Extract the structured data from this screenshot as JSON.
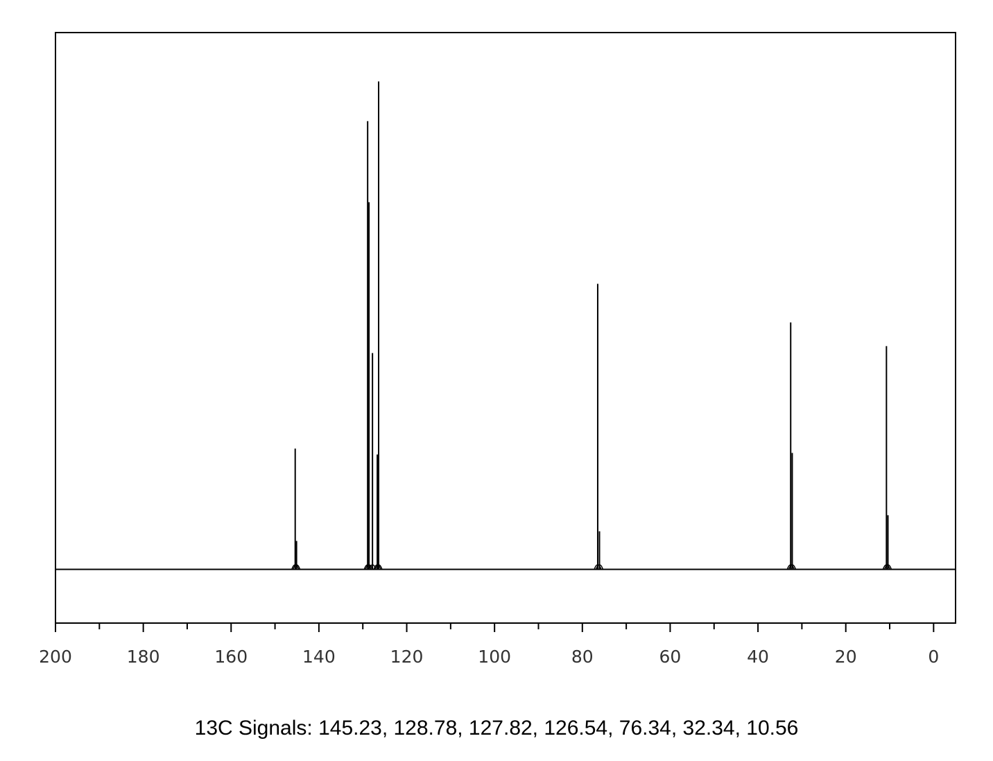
{
  "chart_data": {
    "type": "spectrum",
    "caption": "13C Signals: 145.23, 128.78, 127.82, 126.54, 76.34, 32.34, 10.56",
    "x": [
      145.4,
      145.1,
      128.9,
      128.6,
      127.8,
      126.7,
      126.4,
      76.5,
      76.1,
      32.55,
      32.2,
      10.74,
      10.4
    ],
    "values": [
      22.5,
      5.3,
      83.5,
      68.4,
      40.3,
      21.4,
      90.9,
      53.2,
      7.1,
      46.0,
      21.7,
      41.6,
      10.1
    ],
    "color": "#000000",
    "xlim": [
      200,
      -5
    ],
    "ylim": [
      -10,
      100
    ],
    "xticks": [
      200,
      180,
      160,
      140,
      120,
      100,
      80,
      60,
      40,
      20,
      0
    ],
    "xminorticks": [
      190,
      170,
      150,
      130,
      110,
      90,
      70,
      50,
      30,
      10
    ],
    "grid": false
  }
}
